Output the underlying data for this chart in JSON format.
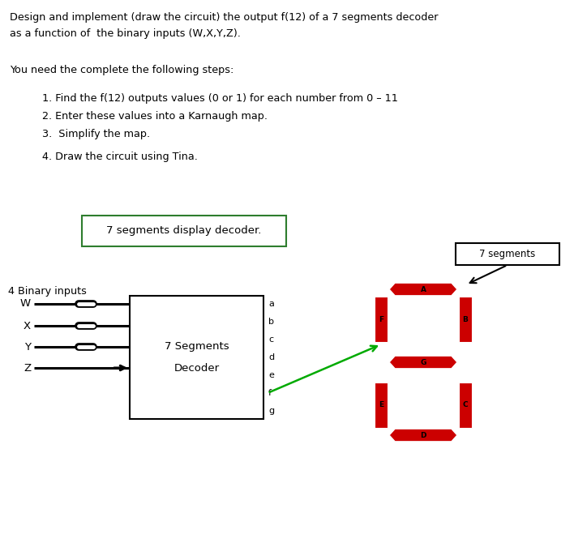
{
  "title_line1": "Design and implement (draw the circuit) the output f(12) of a 7 segments decoder",
  "title_line2": "as a function of  the binary inputs (W,X,Y,Z).",
  "subtitle": "You need the complete the following steps:",
  "steps": [
    "1. Find the f(12) outputs values (0 or 1) for each number from 0 – 11",
    "2. Enter these values into a Karnaugh map.",
    "3.  Simplify the map.",
    "4. Draw the circuit using Tina."
  ],
  "box_label": "7 segments display decoder.",
  "decoder_label1": "7 Segments",
  "decoder_label2": "Decoder",
  "inputs_label": "4 Binary inputs",
  "input_pins": [
    "W",
    "X",
    "Y",
    "Z"
  ],
  "output_pins": [
    "a",
    "b",
    "c",
    "d",
    "e",
    "f",
    "g"
  ],
  "seg7_label": "7 segments",
  "seg_color": "#CC0000",
  "text_color": "#000000",
  "box_border_color": "#2e7d2e",
  "decoder_border_color": "#000000",
  "seg7_box_color": "#000000",
  "arrow_color": "#000000",
  "green_arrow_color": "#00aa00",
  "wire_color": "#000000",
  "fig_w": 7.08,
  "fig_h": 6.75,
  "dpi": 100
}
